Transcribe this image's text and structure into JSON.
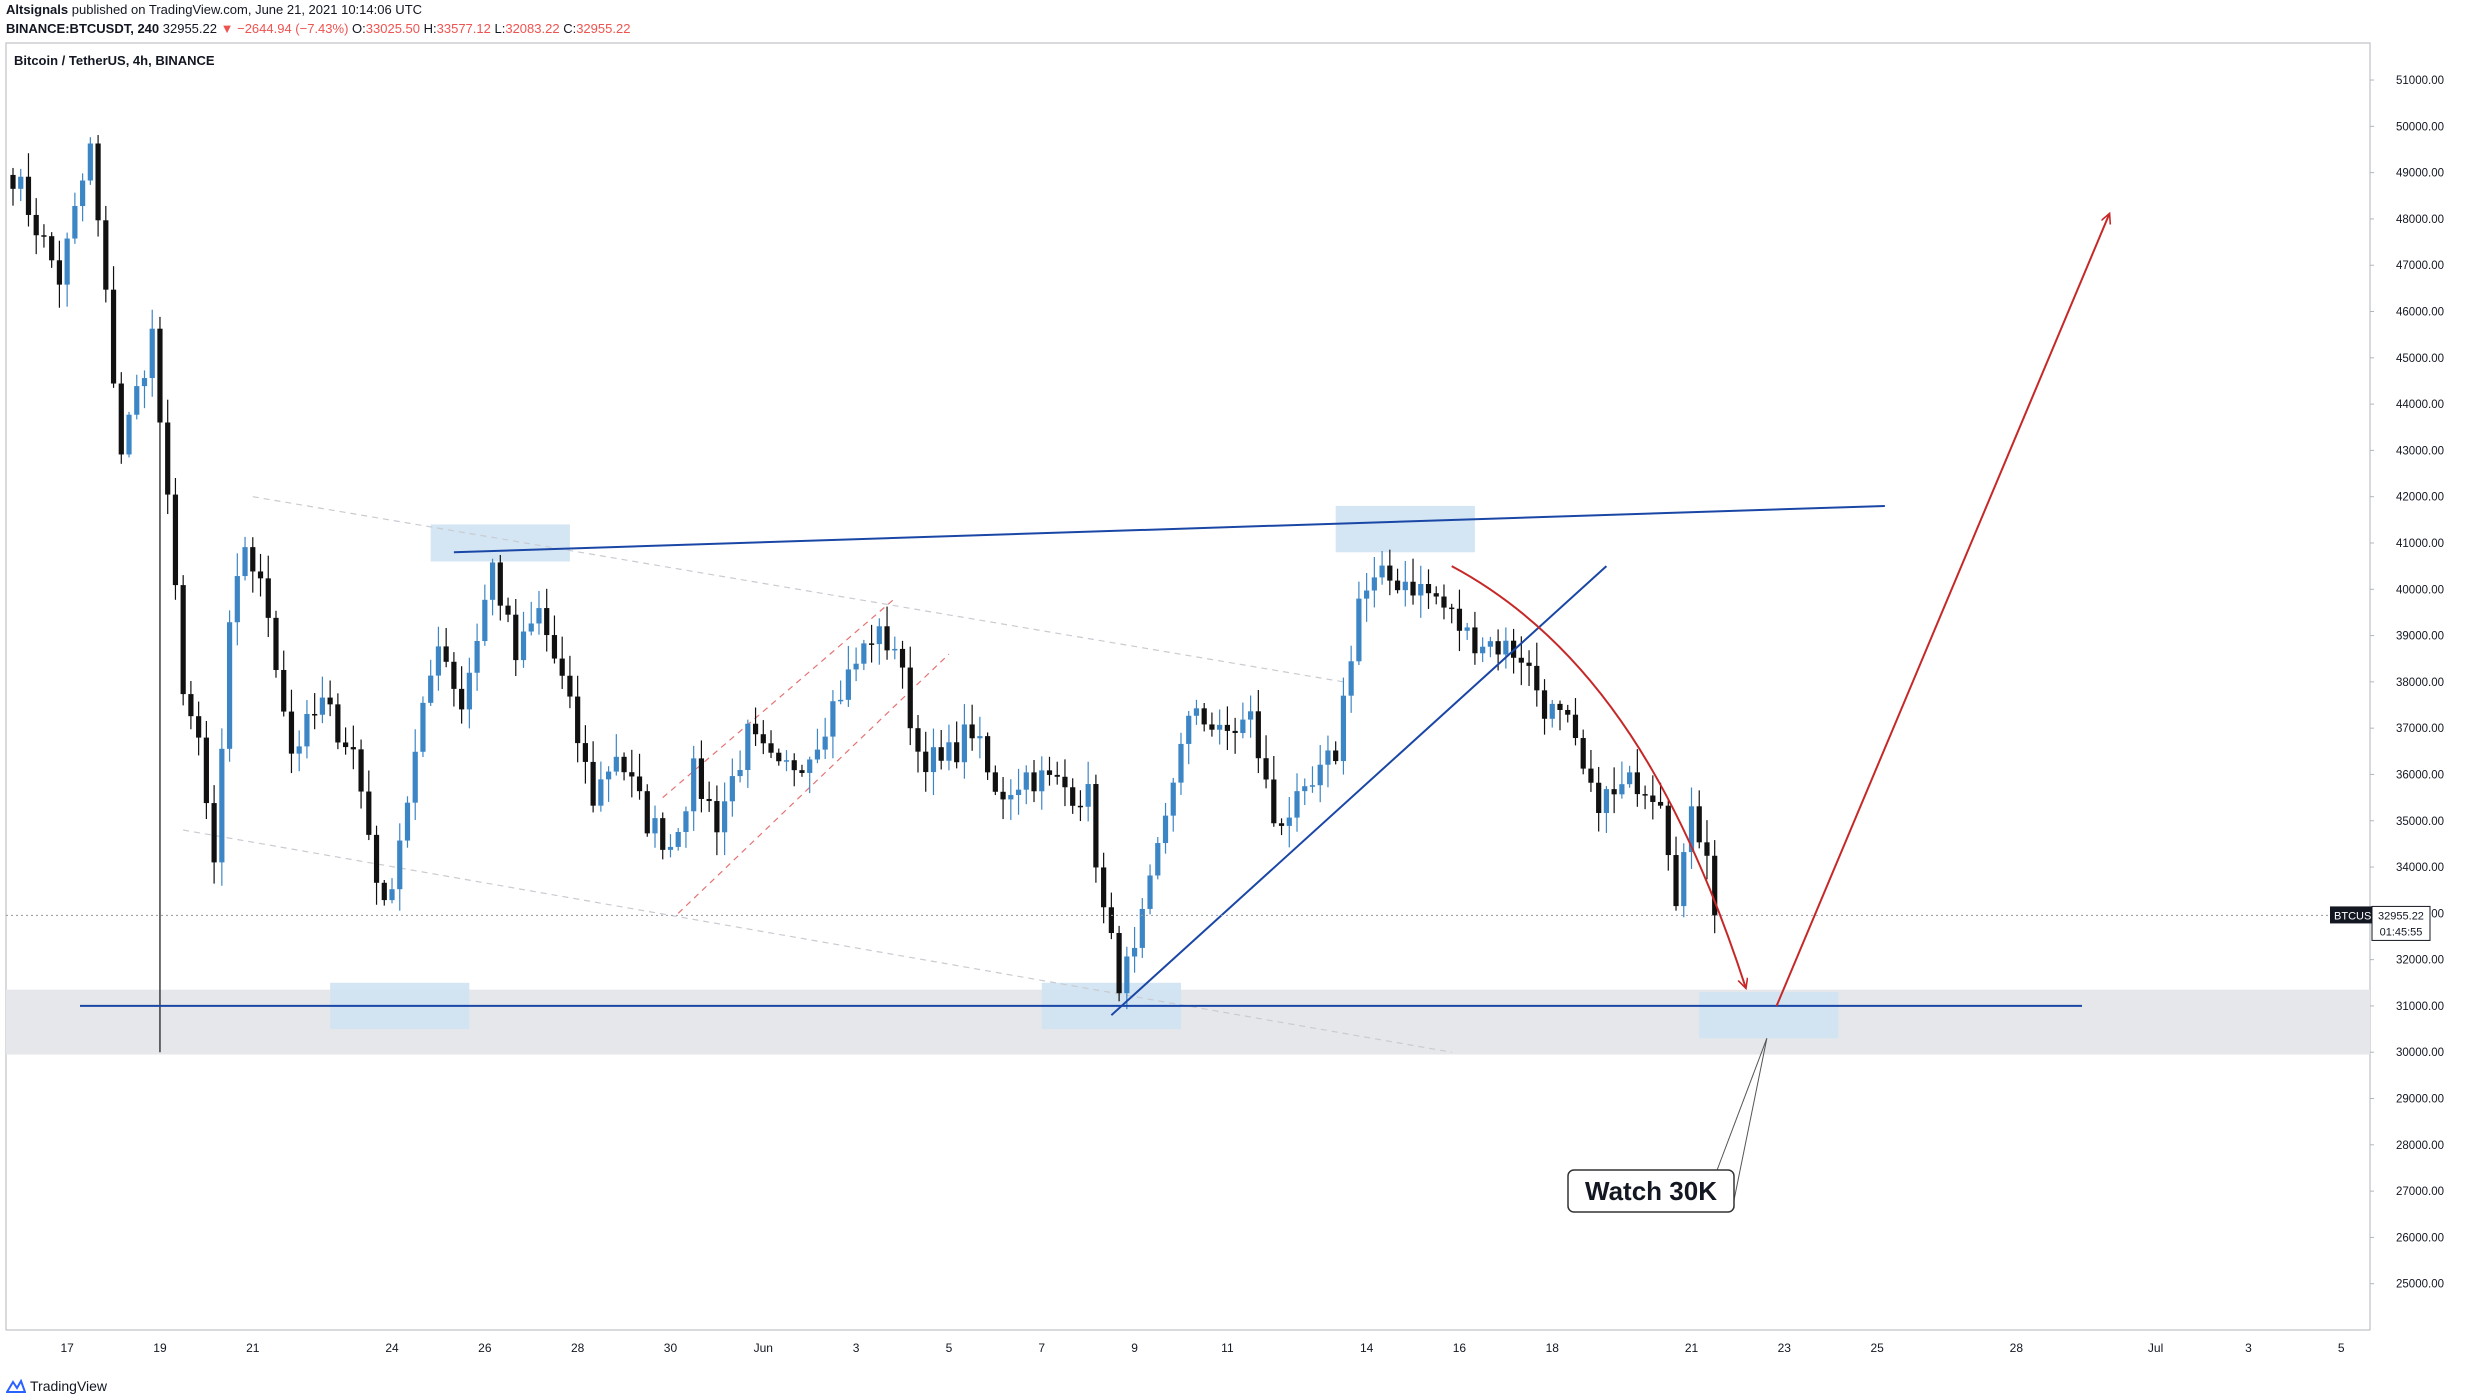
{
  "header": {
    "publisher": "Altsignals",
    "published_text": "published on TradingView.com, June 21, 2021 10:14:06 UTC",
    "symbol_line": "BINANCE:BTCUSDT, 240",
    "last": "32955.22",
    "change": "▼ −2644.94 (−7.43%)",
    "o_label": "O:",
    "o_value": "33025.50",
    "h_label": "H:",
    "h_value": "33577.12",
    "l_label": "L:",
    "l_value": "32083.22",
    "c_label": "C:",
    "c_value": "32955.22"
  },
  "chart_title": "Bitcoin / TetherUS, 4h, BINANCE",
  "footer": {
    "brand": "TradingView"
  },
  "colors": {
    "up": "#3d86c6",
    "down": "#111111",
    "level_line": "#1a47a5",
    "zone": "#cfe2f3",
    "support_band": "#e6e7ea",
    "arrow": "#c62828",
    "price_tag_bg": "#131722"
  },
  "chart_data": {
    "type": "candlestick",
    "symbol": "BTCUSDT",
    "timeframe": "4h",
    "last_price": "32955.22",
    "countdown": "01:45:55",
    "ylim": [
      24000,
      51800
    ],
    "y_ticks": [
      "51000.00",
      "50000.00",
      "49000.00",
      "48000.00",
      "47000.00",
      "46000.00",
      "45000.00",
      "44000.00",
      "43000.00",
      "42000.00",
      "41000.00",
      "40000.00",
      "39000.00",
      "38000.00",
      "37000.00",
      "36000.00",
      "35000.00",
      "34000.00",
      "33000.00",
      "32000.00",
      "31000.00",
      "30000.00",
      "29000.00",
      "28000.00",
      "27000.00",
      "26000.00",
      "25000.00"
    ],
    "x_ticks": [
      {
        "label": "17",
        "bar": 7
      },
      {
        "label": "19",
        "bar": 19
      },
      {
        "label": "21",
        "bar": 31
      },
      {
        "label": "24",
        "bar": 49
      },
      {
        "label": "26",
        "bar": 61
      },
      {
        "label": "28",
        "bar": 73
      },
      {
        "label": "30",
        "bar": 85
      },
      {
        "label": "Jun",
        "bar": 97
      },
      {
        "label": "3",
        "bar": 109
      },
      {
        "label": "5",
        "bar": 121
      },
      {
        "label": "7",
        "bar": 133
      },
      {
        "label": "9",
        "bar": 145
      },
      {
        "label": "11",
        "bar": 157
      },
      {
        "label": "14",
        "bar": 175
      },
      {
        "label": "16",
        "bar": 187
      },
      {
        "label": "18",
        "bar": 199
      },
      {
        "label": "21",
        "bar": 217
      },
      {
        "label": "23",
        "bar": 229
      },
      {
        "label": "25",
        "bar": 241
      },
      {
        "label": "28",
        "bar": 259
      },
      {
        "label": "Jul",
        "bar": 277
      },
      {
        "label": "3",
        "bar": 289
      },
      {
        "label": "5",
        "bar": 301
      }
    ],
    "total_bars_on_axis": 306,
    "anchors": [
      [
        0,
        49000
      ],
      [
        6,
        46700
      ],
      [
        10,
        49500
      ],
      [
        14,
        43000
      ],
      [
        18,
        45500
      ],
      [
        22,
        38000
      ],
      [
        24,
        36500
      ],
      [
        26,
        34000
      ],
      [
        28,
        39000
      ],
      [
        30,
        41000
      ],
      [
        33,
        39500
      ],
      [
        36,
        36500
      ],
      [
        40,
        37500
      ],
      [
        44,
        36500
      ],
      [
        48,
        33000
      ],
      [
        51,
        35500
      ],
      [
        55,
        39000
      ],
      [
        58,
        37500
      ],
      [
        62,
        40500
      ],
      [
        65,
        38500
      ],
      [
        68,
        39500
      ],
      [
        71,
        38000
      ],
      [
        75,
        35500
      ],
      [
        78,
        36500
      ],
      [
        82,
        35000
      ],
      [
        85,
        34500
      ],
      [
        88,
        36000
      ],
      [
        91,
        35000
      ],
      [
        95,
        36800
      ],
      [
        99,
        36000
      ],
      [
        103,
        36500
      ],
      [
        106,
        37500
      ],
      [
        111,
        39000
      ],
      [
        114,
        38800
      ],
      [
        117,
        36500
      ],
      [
        120,
        36200
      ],
      [
        124,
        37000
      ],
      [
        127,
        35500
      ],
      [
        131,
        36000
      ],
      [
        135,
        35800
      ],
      [
        139,
        35500
      ],
      [
        141,
        33000
      ],
      [
        143,
        31600
      ],
      [
        145,
        32000
      ],
      [
        147,
        33500
      ],
      [
        150,
        36000
      ],
      [
        153,
        37500
      ],
      [
        156,
        36800
      ],
      [
        160,
        37200
      ],
      [
        163,
        35000
      ],
      [
        167,
        35400
      ],
      [
        171,
        36500
      ],
      [
        174,
        39800
      ],
      [
        177,
        40200
      ],
      [
        180,
        40200
      ],
      [
        184,
        39800
      ],
      [
        188,
        39000
      ],
      [
        192,
        38800
      ],
      [
        195,
        38600
      ],
      [
        198,
        37500
      ],
      [
        201,
        37000
      ],
      [
        204,
        35500
      ],
      [
        207,
        35500
      ],
      [
        210,
        35900
      ],
      [
        213,
        35600
      ],
      [
        215,
        33500
      ],
      [
        217,
        35000
      ],
      [
        219,
        34500
      ],
      [
        220,
        32955
      ]
    ],
    "annotations": {
      "callout": "Watch 30K",
      "support_band": [
        29950,
        31350
      ],
      "support_line": 31000,
      "resistance_line": {
        "from": [
          57,
          40800
        ],
        "to": [
          242,
          41800
        ]
      },
      "trend_line": {
        "from": [
          142,
          30800
        ],
        "to": [
          206,
          40500
        ]
      },
      "down_channel_upper": {
        "from": [
          31,
          42000
        ],
        "to": [
          172,
          38000
        ]
      },
      "down_channel_lower": {
        "from": [
          22,
          34800
        ],
        "to": [
          186,
          30000
        ]
      },
      "up_channel_upper": {
        "from": [
          84,
          35500
        ],
        "to": [
          114,
          39800
        ]
      },
      "up_channel_lower": {
        "from": [
          86,
          33000
        ],
        "to": [
          121,
          38600
        ]
      },
      "buy_zones": [
        {
          "bars": [
            41,
            59
          ],
          "price": [
            30500,
            31500
          ]
        },
        {
          "bars": [
            54,
            72
          ],
          "price": [
            40600,
            41400
          ]
        },
        {
          "bars": [
            133,
            151
          ],
          "price": [
            30500,
            31500
          ]
        },
        {
          "bars": [
            171,
            189
          ],
          "price": [
            40800,
            41800
          ]
        },
        {
          "bars": [
            218,
            236
          ],
          "price": [
            30300,
            31300
          ]
        }
      ],
      "projection_down": [
        [
          186,
          40500
        ],
        [
          205,
          38800
        ],
        [
          216,
          35500
        ],
        [
          224,
          31400
        ]
      ],
      "projection_up": {
        "from": [
          228,
          31000
        ],
        "to": [
          271,
          48100
        ]
      }
    }
  }
}
